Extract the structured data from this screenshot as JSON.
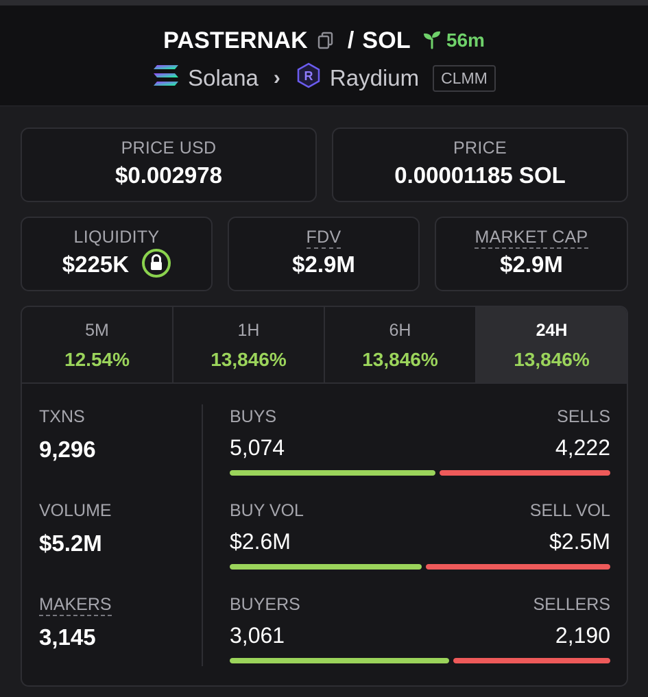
{
  "pair": {
    "base": "PASTERNAK",
    "separator": "/",
    "quote": "SOL",
    "age": "56m",
    "chain": "Solana",
    "dex": "Raydium",
    "pool_type": "CLMM"
  },
  "colors": {
    "accent_green": "#9bd45b",
    "age_green": "#6fd16a",
    "sell_red": "#ee5a5a"
  },
  "price_usd": {
    "label": "PRICE USD",
    "value": "$0.002978"
  },
  "price_native": {
    "label": "PRICE",
    "value": "0.00001185 SOL"
  },
  "liquidity": {
    "label": "LIQUIDITY",
    "value": "$225K"
  },
  "fdv": {
    "label": "FDV",
    "value": "$2.9M"
  },
  "market_cap": {
    "label": "MARKET CAP",
    "value": "$2.9M"
  },
  "tabs": [
    {
      "label": "5M",
      "change": "12.54%"
    },
    {
      "label": "1H",
      "change": "13,846%"
    },
    {
      "label": "6H",
      "change": "13,846%"
    },
    {
      "label": "24H",
      "change": "13,846%",
      "active": true
    }
  ],
  "stats": {
    "txns": {
      "label": "TXNS",
      "value": "9,296"
    },
    "volume": {
      "label": "VOLUME",
      "value": "$5.2M"
    },
    "makers": {
      "label": "MAKERS",
      "value": "3,145"
    },
    "buys": {
      "left_label": "BUYS",
      "right_label": "SELLS",
      "left_value": "5,074",
      "right_value": "4,222",
      "left_share": 0.546
    },
    "vol": {
      "left_label": "BUY VOL",
      "right_label": "SELL VOL",
      "left_value": "$2.6M",
      "right_value": "$2.5M",
      "left_share": 0.51
    },
    "makers_split": {
      "left_label": "BUYERS",
      "right_label": "SELLERS",
      "left_value": "3,061",
      "right_value": "2,190",
      "left_share": 0.583
    }
  }
}
